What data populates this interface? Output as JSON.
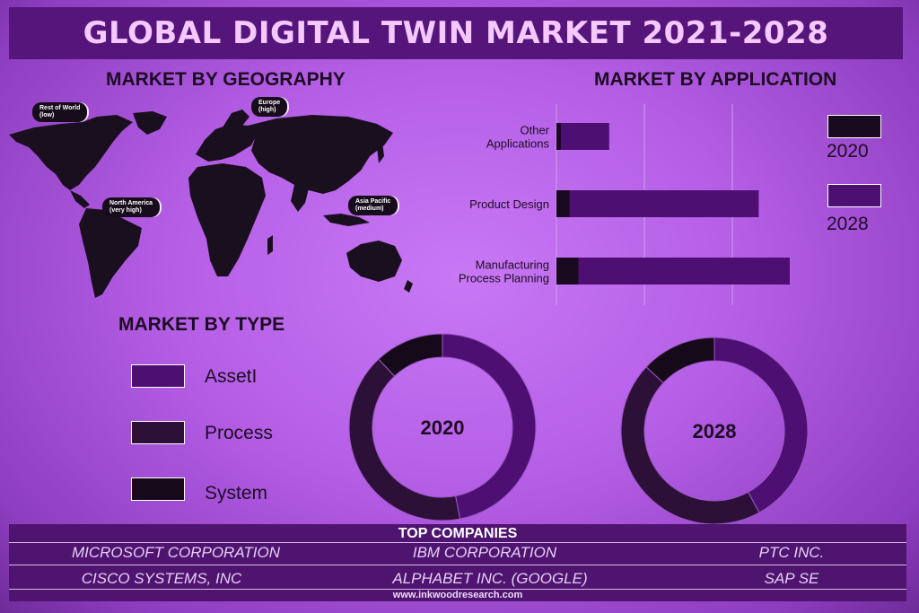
{
  "title": "GLOBAL DIGITAL TWIN MARKET 2021-2028",
  "geography": {
    "heading": "MARKET BY GEOGRAPHY",
    "regions": [
      {
        "name": "Rest of World",
        "level": "(low)"
      },
      {
        "name": "Europe",
        "level": "(high)"
      },
      {
        "name": "North America",
        "level": "(very high)"
      },
      {
        "name": "Asia Pacific",
        "level": "(medium)"
      }
    ]
  },
  "application": {
    "heading": "MARKET BY APPLICATION",
    "legend": [
      {
        "year": "2020",
        "color": "#1a0a20"
      },
      {
        "year": "2028",
        "color": "#4e0f72"
      }
    ]
  },
  "type": {
    "heading": "MARKET BY TYPE",
    "legend": [
      {
        "label": "AssetI",
        "color": "#4e0f72"
      },
      {
        "label": "Process",
        "color": "#2d1037"
      },
      {
        "label": "System",
        "color": "#160a1a"
      }
    ]
  },
  "chart_data": [
    {
      "type": "bar",
      "orientation": "horizontal",
      "title": "MARKET BY APPLICATION",
      "categories": [
        "Other Applications",
        "Product Design",
        "Manufacturing Process Planning"
      ],
      "series": [
        {
          "name": "2020",
          "values": [
            0.5,
            1.5,
            2.5
          ],
          "color": "#1a0a20"
        },
        {
          "name": "2028",
          "values": [
            6,
            23,
            37
          ],
          "color": "#4e0f72"
        }
      ],
      "grid": true,
      "legend": "right"
    },
    {
      "type": "pie",
      "subtype": "donut",
      "center_label": "2020",
      "labels": [
        "AssetI",
        "Process",
        "System"
      ],
      "values": [
        47,
        41,
        12
      ],
      "colors": [
        "#4e0f72",
        "#2d1037",
        "#160a1a"
      ]
    },
    {
      "type": "pie",
      "subtype": "donut",
      "center_label": "2028",
      "labels": [
        "AssetI",
        "Process",
        "System"
      ],
      "values": [
        42,
        45,
        13
      ],
      "colors": [
        "#4e0f72",
        "#2d1037",
        "#160a1a"
      ]
    }
  ],
  "companies": {
    "heading": "TOP COMPANIES",
    "names": [
      "MICROSOFT CORPORATION",
      "IBM CORPORATION",
      "PTC INC.",
      "CISCO SYSTEMS, INC",
      "ALPHABET INC. (GOOGLE)",
      "SAP SE"
    ]
  },
  "website": "www.inkwoodresearch.com"
}
